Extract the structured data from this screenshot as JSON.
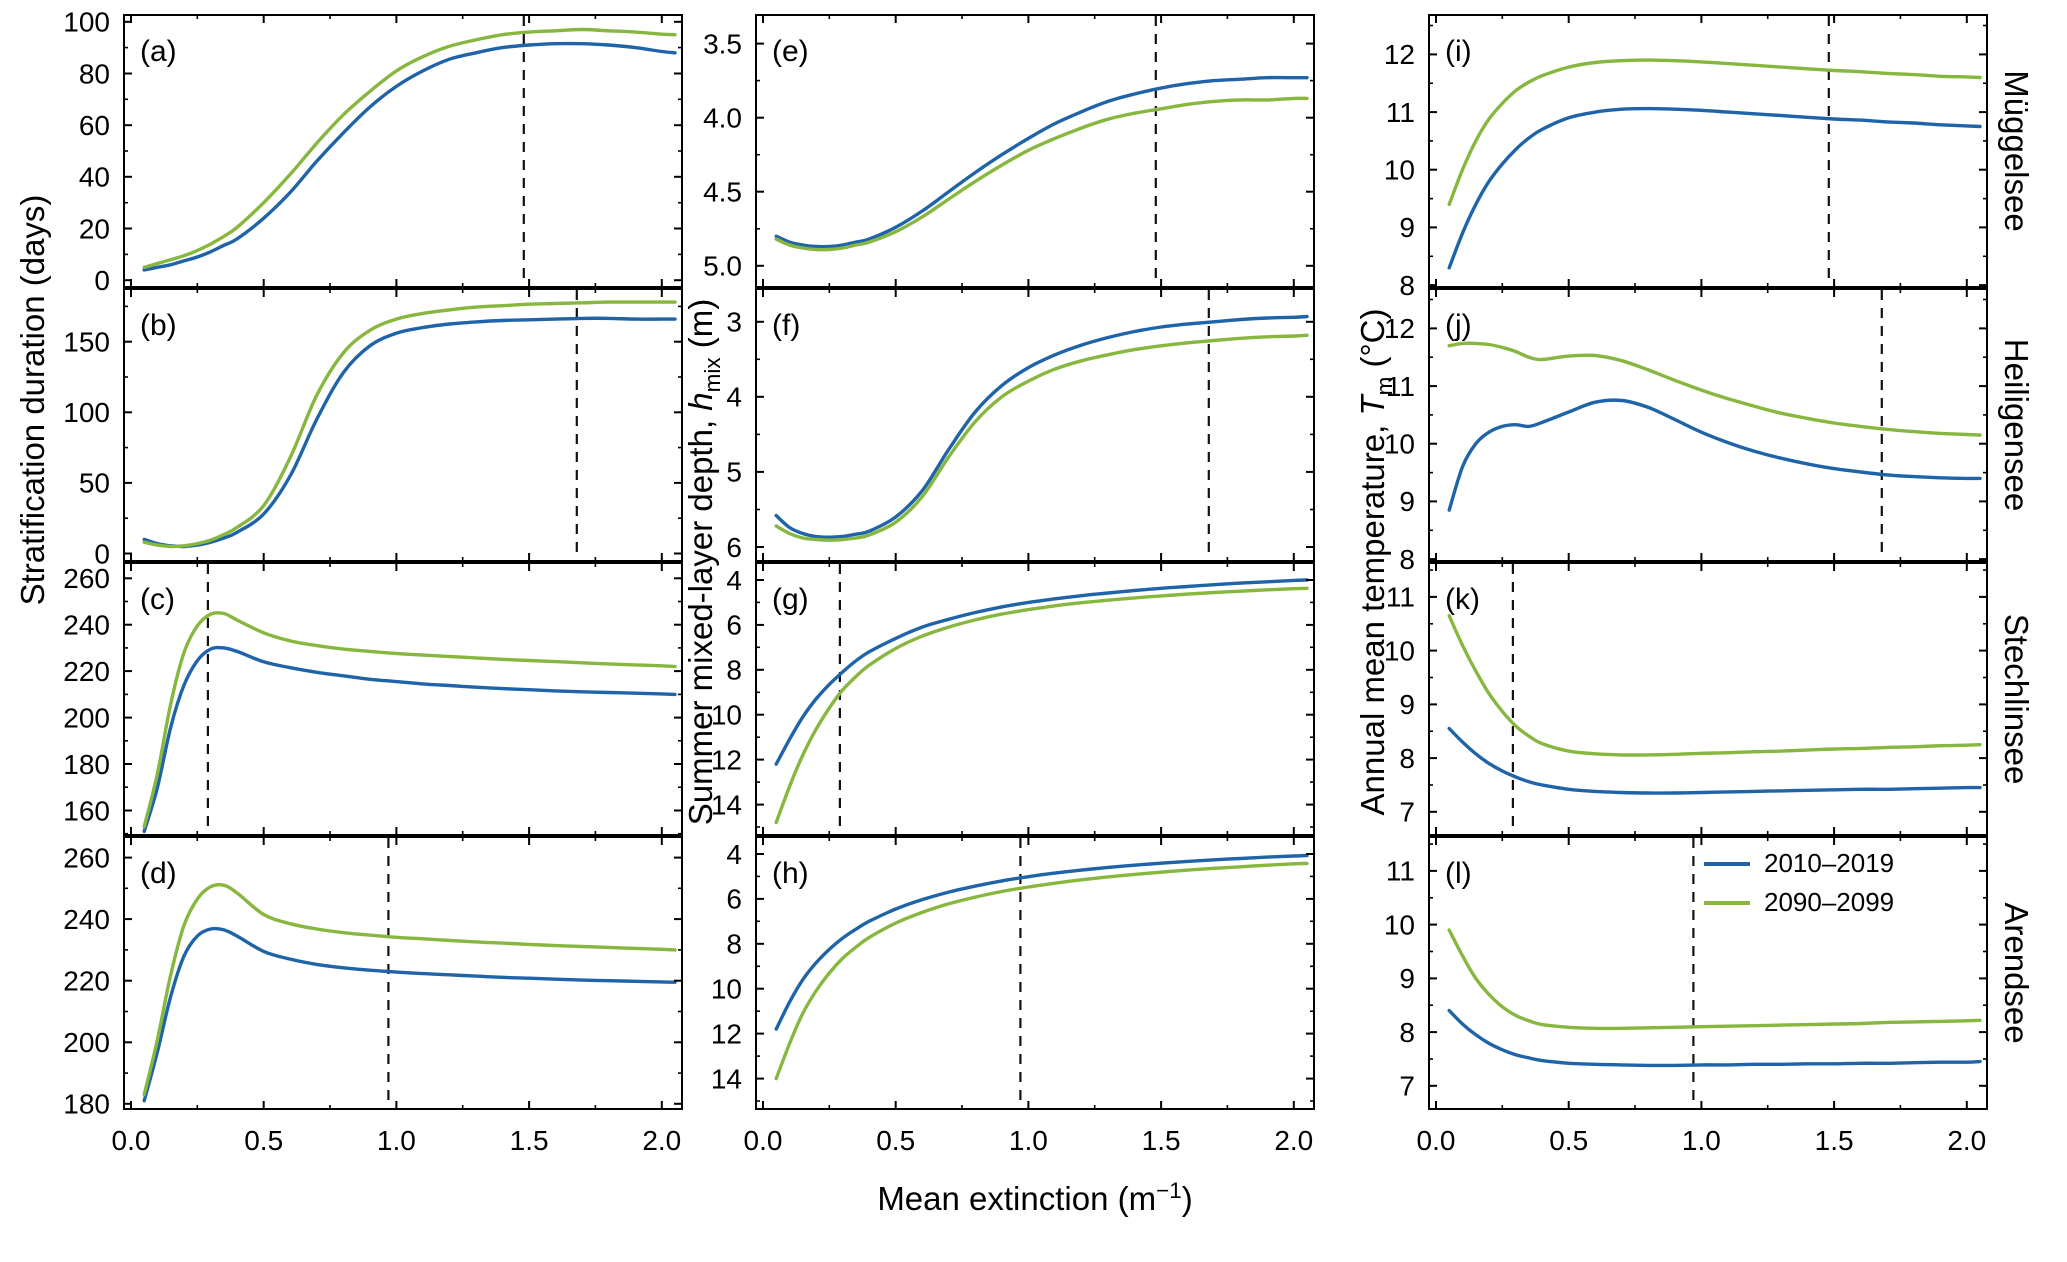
{
  "figure": {
    "xlabel": {
      "pre": "Mean extinction (m",
      "sup": "−1",
      "post": ")"
    },
    "ylabels": {
      "col1": {
        "pre": "Stratification duration (days)",
        "var": "",
        "sub": "",
        "post": ""
      },
      "col2": {
        "pre": "Summer mixed-layer depth, ",
        "var": "h",
        "sub": "mix",
        "post": " (m)"
      },
      "col3": {
        "pre": "Annual mean temperature, ",
        "var": "T",
        "sub": "m",
        "post": " (°C)"
      }
    },
    "row_labels": [
      "Müggelsee",
      "Heiligensee",
      "Stechlinsee",
      "Arendsee"
    ],
    "legend": {
      "items": [
        {
          "label": "2010–2019",
          "color": "#1f63a8"
        },
        {
          "label": "2090–2099",
          "color": "#87b73f"
        }
      ]
    }
  },
  "chart_data": {
    "type": "line",
    "title": "",
    "x_axis": {
      "label": "Mean extinction (m^-1)",
      "lim": [
        -0.03,
        2.08
      ],
      "ticks": [
        0.0,
        0.5,
        1.0,
        1.5,
        2.0
      ],
      "tick_labels": [
        "0.0",
        "0.5",
        "1.0",
        "1.5",
        "2.0"
      ],
      "minor_ticks": [
        0.25,
        0.75,
        1.25,
        1.75
      ]
    },
    "series_names": [
      "2010-2019",
      "2090-2099"
    ],
    "series_colors": [
      "#1f63a8",
      "#87b73f"
    ],
    "x": [
      0.05,
      0.1,
      0.15,
      0.2,
      0.25,
      0.3,
      0.35,
      0.4,
      0.5,
      0.6,
      0.7,
      0.8,
      0.9,
      1.0,
      1.1,
      1.2,
      1.3,
      1.4,
      1.5,
      1.6,
      1.7,
      1.8,
      1.9,
      2.0,
      2.05
    ],
    "panels": [
      {
        "id": "a",
        "label": "(a)",
        "row": 0,
        "col": 0,
        "lake": "Müggelsee",
        "metric": "Stratification duration (days)",
        "ylim": [
          -3,
          103
        ],
        "inverted": false,
        "yticks": [
          0,
          20,
          40,
          60,
          80,
          100
        ],
        "ytick_labels": [
          "0",
          "20",
          "40",
          "60",
          "80",
          "100"
        ],
        "dashed_x": 1.48,
        "series": [
          [
            4,
            5,
            6,
            7.5,
            9,
            11,
            13.5,
            16,
            24,
            34,
            46,
            57,
            67,
            75,
            81,
            85.5,
            88,
            90,
            91,
            91.5,
            91.5,
            91,
            90,
            88.5,
            88
          ],
          [
            5,
            6.5,
            8,
            9.5,
            11.5,
            14,
            17,
            20.5,
            30,
            41,
            53,
            64,
            73,
            81,
            86.5,
            90.5,
            93,
            95,
            96,
            96.5,
            97,
            96.5,
            96,
            95.2,
            95
          ]
        ]
      },
      {
        "id": "b",
        "label": "(b)",
        "row": 1,
        "col": 0,
        "lake": "Heiligensee",
        "metric": "Stratification duration (days)",
        "ylim": [
          -6,
          188
        ],
        "inverted": false,
        "yticks": [
          0,
          50,
          100,
          150
        ],
        "ytick_labels": [
          "0",
          "50",
          "100",
          "150"
        ],
        "dashed_x": 1.68,
        "series": [
          [
            10,
            7,
            5.5,
            5,
            6,
            8,
            11,
            15,
            28,
            55,
            95,
            128,
            147,
            156,
            160,
            162.5,
            164,
            165,
            165.5,
            166,
            166.5,
            166.5,
            166,
            166,
            166
          ],
          [
            8,
            6,
            5,
            5.5,
            7,
            9.5,
            13.5,
            18.5,
            34,
            68,
            112,
            142,
            158,
            166,
            170,
            172.5,
            174.5,
            175.5,
            176.5,
            177,
            177.5,
            178,
            178,
            178,
            178
          ]
        ]
      },
      {
        "id": "c",
        "label": "(c)",
        "row": 2,
        "col": 0,
        "lake": "Stechlinsee",
        "metric": "Stratification duration (days)",
        "ylim": [
          149,
          267
        ],
        "inverted": false,
        "yticks": [
          160,
          180,
          200,
          220,
          240,
          260
        ],
        "ytick_labels": [
          "160",
          "180",
          "200",
          "220",
          "240",
          "260"
        ],
        "dashed_x": 0.29,
        "series": [
          [
            151,
            170,
            196,
            214,
            224.5,
            229.5,
            230,
            228.5,
            224,
            221.5,
            219.5,
            218,
            216.5,
            215.5,
            214.5,
            213.8,
            213.1,
            212.5,
            212,
            211.5,
            211.1,
            210.8,
            210.5,
            210.2,
            210
          ],
          [
            153,
            176,
            206,
            228,
            239.5,
            244.5,
            244.8,
            242,
            236.5,
            233,
            231,
            229.5,
            228.5,
            227.6,
            226.9,
            226.3,
            225.7,
            225.1,
            224.6,
            224.1,
            223.6,
            223.1,
            222.7,
            222.3,
            222
          ]
        ]
      },
      {
        "id": "d",
        "label": "(d)",
        "row": 3,
        "col": 0,
        "lake": "Arendsee",
        "metric": "Stratification duration (days)",
        "ylim": [
          178,
          267
        ],
        "inverted": false,
        "yticks": [
          180,
          200,
          220,
          240,
          260
        ],
        "ytick_labels": [
          "180",
          "200",
          "220",
          "240",
          "260"
        ],
        "dashed_x": 0.97,
        "series": [
          [
            181,
            197,
            215,
            228,
            234.5,
            236.8,
            236.5,
            234.5,
            229.5,
            227,
            225.3,
            224.2,
            223.4,
            222.8,
            222.3,
            221.9,
            221.5,
            221.1,
            220.8,
            220.5,
            220.2,
            220,
            219.8,
            219.6,
            219.5
          ],
          [
            183,
            201,
            222,
            238,
            246.5,
            250.5,
            251,
            248.5,
            241.5,
            238.5,
            236.8,
            235.6,
            234.8,
            234.1,
            233.6,
            233.1,
            232.6,
            232.2,
            231.8,
            231.4,
            231.1,
            230.8,
            230.5,
            230.2,
            230
          ]
        ]
      },
      {
        "id": "e",
        "label": "(e)",
        "row": 0,
        "col": 1,
        "lake": "Müggelsee",
        "metric": "Summer mixed-layer depth (m)",
        "ylim": [
          3.3,
          5.15
        ],
        "inverted": true,
        "yticks": [
          3.5,
          4.0,
          4.5,
          5.0
        ],
        "ytick_labels": [
          "3.5",
          "4.0",
          "4.5",
          "5.0"
        ],
        "dashed_x": 1.48,
        "series": [
          [
            4.8,
            4.84,
            4.86,
            4.87,
            4.87,
            4.86,
            4.84,
            4.82,
            4.74,
            4.63,
            4.5,
            4.37,
            4.25,
            4.14,
            4.04,
            3.96,
            3.89,
            3.84,
            3.8,
            3.77,
            3.75,
            3.74,
            3.73,
            3.73,
            3.73
          ],
          [
            4.82,
            4.86,
            4.88,
            4.89,
            4.89,
            4.88,
            4.86,
            4.84,
            4.77,
            4.67,
            4.55,
            4.43,
            4.32,
            4.22,
            4.14,
            4.07,
            4.01,
            3.97,
            3.94,
            3.91,
            3.89,
            3.88,
            3.88,
            3.87,
            3.87
          ]
        ]
      },
      {
        "id": "f",
        "label": "(f)",
        "row": 1,
        "col": 1,
        "lake": "Heiligensee",
        "metric": "Summer mixed-layer depth (m)",
        "ylim": [
          2.55,
          6.2
        ],
        "inverted": true,
        "yticks": [
          3,
          4,
          5,
          6
        ],
        "ytick_labels": [
          "3",
          "4",
          "5",
          "6"
        ],
        "dashed_x": 1.68,
        "series": [
          [
            5.58,
            5.74,
            5.82,
            5.86,
            5.87,
            5.86,
            5.83,
            5.79,
            5.6,
            5.25,
            4.7,
            4.2,
            3.85,
            3.61,
            3.44,
            3.31,
            3.21,
            3.13,
            3.07,
            3.03,
            3.0,
            2.97,
            2.95,
            2.94,
            2.93
          ],
          [
            5.72,
            5.82,
            5.88,
            5.9,
            5.91,
            5.9,
            5.88,
            5.84,
            5.67,
            5.33,
            4.8,
            4.33,
            4.0,
            3.79,
            3.63,
            3.52,
            3.44,
            3.37,
            3.32,
            3.28,
            3.25,
            3.22,
            3.2,
            3.19,
            3.18
          ]
        ]
      },
      {
        "id": "g",
        "label": "(g)",
        "row": 2,
        "col": 1,
        "lake": "Stechlinsee",
        "metric": "Summer mixed-layer depth (m)",
        "ylim": [
          3.2,
          15.4
        ],
        "inverted": true,
        "yticks": [
          4,
          6,
          8,
          10,
          12,
          14
        ],
        "ytick_labels": [
          "4",
          "6",
          "8",
          "10",
          "12",
          "14"
        ],
        "dashed_x": 0.29,
        "series": [
          [
            12.2,
            11.1,
            10.1,
            9.3,
            8.65,
            8.1,
            7.6,
            7.2,
            6.6,
            6.1,
            5.75,
            5.45,
            5.2,
            5.0,
            4.84,
            4.7,
            4.58,
            4.47,
            4.37,
            4.29,
            4.21,
            4.14,
            4.08,
            4.02,
            4.0
          ],
          [
            14.8,
            13.2,
            11.8,
            10.65,
            9.7,
            8.9,
            8.3,
            7.8,
            7.05,
            6.5,
            6.1,
            5.78,
            5.52,
            5.32,
            5.15,
            5.01,
            4.9,
            4.8,
            4.71,
            4.63,
            4.56,
            4.5,
            4.44,
            4.39,
            4.37
          ]
        ]
      },
      {
        "id": "h",
        "label": "(h)",
        "row": 3,
        "col": 1,
        "lake": "Arendsee",
        "metric": "Summer mixed-layer depth (m)",
        "ylim": [
          3.2,
          15.4
        ],
        "inverted": true,
        "yticks": [
          4,
          6,
          8,
          10,
          12,
          14
        ],
        "ytick_labels": [
          "4",
          "6",
          "8",
          "10",
          "12",
          "14"
        ],
        "dashed_x": 0.97,
        "series": [
          [
            11.8,
            10.6,
            9.6,
            8.85,
            8.25,
            7.75,
            7.35,
            7.0,
            6.45,
            6.03,
            5.7,
            5.43,
            5.2,
            5.01,
            4.85,
            4.72,
            4.6,
            4.5,
            4.41,
            4.33,
            4.26,
            4.2,
            4.14,
            4.09,
            4.07
          ],
          [
            14.0,
            12.45,
            11.1,
            10.1,
            9.3,
            8.65,
            8.15,
            7.72,
            7.08,
            6.6,
            6.22,
            5.92,
            5.67,
            5.47,
            5.3,
            5.15,
            5.02,
            4.91,
            4.81,
            4.72,
            4.64,
            4.57,
            4.5,
            4.44,
            4.42
          ]
        ]
      },
      {
        "id": "i",
        "label": "(i)",
        "row": 0,
        "col": 2,
        "lake": "Müggelsee",
        "metric": "Annual mean temperature (°C)",
        "ylim": [
          7.95,
          12.7
        ],
        "inverted": false,
        "yticks": [
          8,
          9,
          10,
          11,
          12
        ],
        "ytick_labels": [
          "8",
          "9",
          "10",
          "11",
          "12"
        ],
        "dashed_x": 1.48,
        "series": [
          [
            8.3,
            8.9,
            9.4,
            9.8,
            10.1,
            10.35,
            10.55,
            10.7,
            10.9,
            11.0,
            11.05,
            11.06,
            11.05,
            11.03,
            11.0,
            10.97,
            10.94,
            10.91,
            10.88,
            10.86,
            10.83,
            10.81,
            10.78,
            10.76,
            10.75
          ],
          [
            9.4,
            10.0,
            10.5,
            10.88,
            11.15,
            11.37,
            11.52,
            11.63,
            11.78,
            11.86,
            11.89,
            11.9,
            11.89,
            11.87,
            11.84,
            11.81,
            11.78,
            11.75,
            11.72,
            11.7,
            11.67,
            11.65,
            11.62,
            11.61,
            11.6
          ]
        ]
      },
      {
        "id": "j",
        "label": "(j)",
        "row": 1,
        "col": 2,
        "lake": "Heiligensee",
        "metric": "Annual mean temperature (°C)",
        "ylim": [
          7.95,
          12.7
        ],
        "inverted": false,
        "yticks": [
          8,
          9,
          10,
          11,
          12
        ],
        "ytick_labels": [
          "8",
          "9",
          "10",
          "11",
          "12"
        ],
        "dashed_x": 1.68,
        "series": [
          [
            8.85,
            9.6,
            10.0,
            10.2,
            10.3,
            10.33,
            10.3,
            10.37,
            10.55,
            10.72,
            10.75,
            10.63,
            10.42,
            10.2,
            10.02,
            9.87,
            9.75,
            9.65,
            9.57,
            9.51,
            9.46,
            9.43,
            9.41,
            9.4,
            9.4
          ],
          [
            11.7,
            11.74,
            11.74,
            11.72,
            11.67,
            11.6,
            11.5,
            11.46,
            11.52,
            11.53,
            11.44,
            11.28,
            11.1,
            10.93,
            10.78,
            10.65,
            10.53,
            10.44,
            10.36,
            10.3,
            10.25,
            10.21,
            10.18,
            10.16,
            10.15
          ]
        ]
      },
      {
        "id": "k",
        "label": "(k)",
        "row": 2,
        "col": 2,
        "lake": "Stechlinsee",
        "metric": "Annual mean temperature (°C)",
        "ylim": [
          6.55,
          11.65
        ],
        "inverted": false,
        "yticks": [
          7,
          8,
          9,
          10,
          11
        ],
        "ytick_labels": [
          "7",
          "8",
          "9",
          "10",
          "11"
        ],
        "dashed_x": 0.29,
        "series": [
          [
            8.55,
            8.3,
            8.08,
            7.9,
            7.76,
            7.65,
            7.56,
            7.5,
            7.42,
            7.38,
            7.36,
            7.35,
            7.35,
            7.36,
            7.37,
            7.38,
            7.39,
            7.4,
            7.41,
            7.42,
            7.42,
            7.43,
            7.44,
            7.45,
            7.45
          ],
          [
            10.65,
            10.1,
            9.62,
            9.2,
            8.87,
            8.6,
            8.41,
            8.27,
            8.13,
            8.08,
            8.06,
            8.06,
            8.07,
            8.09,
            8.1,
            8.12,
            8.13,
            8.15,
            8.17,
            8.18,
            8.2,
            8.21,
            8.23,
            8.24,
            8.25
          ]
        ]
      },
      {
        "id": "l",
        "label": "(l)",
        "row": 3,
        "col": 2,
        "lake": "Arendsee",
        "metric": "Annual mean temperature (°C)",
        "ylim": [
          6.55,
          11.65
        ],
        "inverted": false,
        "yticks": [
          7,
          8,
          9,
          10,
          11
        ],
        "ytick_labels": [
          "7",
          "8",
          "9",
          "10",
          "11"
        ],
        "dashed_x": 0.97,
        "series": [
          [
            8.4,
            8.15,
            7.95,
            7.79,
            7.67,
            7.58,
            7.52,
            7.47,
            7.42,
            7.4,
            7.39,
            7.38,
            7.38,
            7.39,
            7.39,
            7.4,
            7.4,
            7.41,
            7.41,
            7.42,
            7.42,
            7.43,
            7.44,
            7.44,
            7.45
          ],
          [
            9.9,
            9.42,
            9.0,
            8.7,
            8.47,
            8.31,
            8.21,
            8.14,
            8.09,
            8.07,
            8.07,
            8.08,
            8.09,
            8.1,
            8.11,
            8.12,
            8.13,
            8.14,
            8.15,
            8.16,
            8.18,
            8.19,
            8.2,
            8.21,
            8.22
          ]
        ]
      }
    ]
  }
}
